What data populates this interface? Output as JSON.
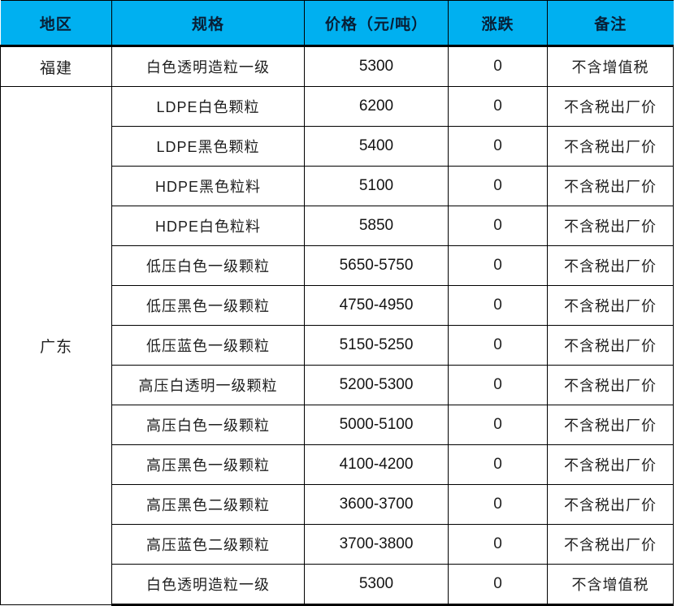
{
  "colors": {
    "header_bg": "#00b0f0",
    "header_text": "#081f36",
    "body_text": "#1f1f1f",
    "border": "#000000"
  },
  "table": {
    "headers": {
      "region": "地区",
      "spec": "规格",
      "price": "价格（元/吨）",
      "change": "涨跌",
      "note": "备注"
    },
    "groups": [
      {
        "region": "福建",
        "rows": [
          {
            "spec": "白色透明造粒一级",
            "price": "5300",
            "change": "0",
            "note": "不含增值税"
          }
        ]
      },
      {
        "region": "广东",
        "rows": [
          {
            "spec": "LDPE白色颗粒",
            "price": "6200",
            "change": "0",
            "note": "不含税出厂价"
          },
          {
            "spec": "LDPE黑色颗粒",
            "price": "5400",
            "change": "0",
            "note": "不含税出厂价"
          },
          {
            "spec": "HDPE黑色粒料",
            "price": "5100",
            "change": "0",
            "note": "不含税出厂价"
          },
          {
            "spec": "HDPE白色粒料",
            "price": "5850",
            "change": "0",
            "note": "不含税出厂价"
          },
          {
            "spec": "低压白色一级颗粒",
            "price": "5650-5750",
            "change": "0",
            "note": "不含税出厂价"
          },
          {
            "spec": "低压黑色一级颗粒",
            "price": "4750-4950",
            "change": "0",
            "note": "不含税出厂价"
          },
          {
            "spec": "低压蓝色一级颗粒",
            "price": "5150-5250",
            "change": "0",
            "note": "不含税出厂价"
          },
          {
            "spec": "高压白透明一级颗粒",
            "price": "5200-5300",
            "change": "0",
            "note": "不含税出厂价"
          },
          {
            "spec": "高压白色一级颗粒",
            "price": "5000-5100",
            "change": "0",
            "note": "不含税出厂价"
          },
          {
            "spec": "高压黑色一级颗粒",
            "price": "4100-4200",
            "change": "0",
            "note": "不含税出厂价"
          },
          {
            "spec": "高压黑色二级颗粒",
            "price": "3600-3700",
            "change": "0",
            "note": "不含税出厂价"
          },
          {
            "spec": "高压蓝色二级颗粒",
            "price": "3700-3800",
            "change": "0",
            "note": "不含税出厂价"
          },
          {
            "spec": "白色透明造粒一级",
            "price": "5300",
            "change": "0",
            "note": "不含增值税"
          }
        ]
      }
    ]
  }
}
